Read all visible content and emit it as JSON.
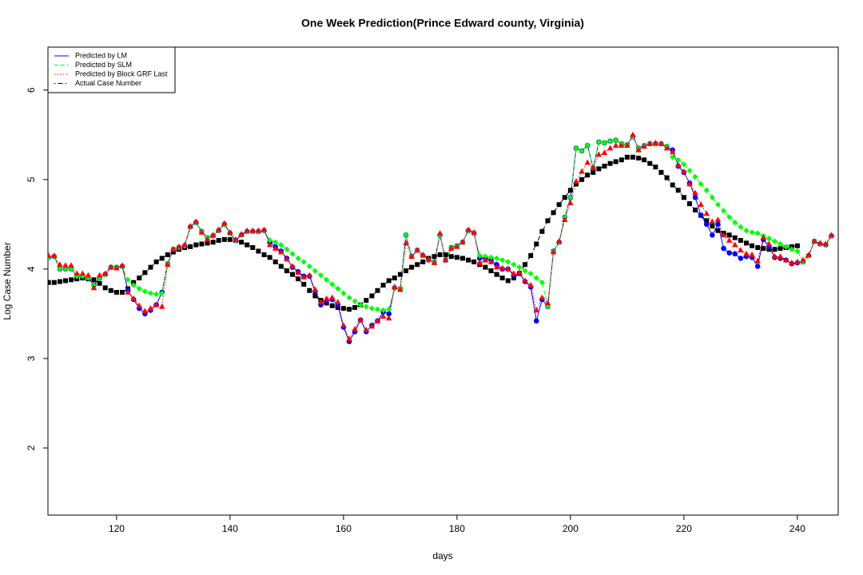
{
  "chart_data": {
    "type": "line_points",
    "title": "One Week Prediction(Prince Edward county, Virginia)",
    "xlabel": "days",
    "ylabel": "Log Case Number",
    "xlim": [
      107.9,
      247.2
    ],
    "ylim": [
      1.25,
      6.48
    ],
    "xticks": [
      120,
      140,
      160,
      180,
      200,
      220,
      240
    ],
    "yticks": [
      2,
      3,
      4,
      5,
      6
    ],
    "grid": false,
    "legend": "topleft",
    "x": [
      108,
      109,
      110,
      111,
      112,
      113,
      114,
      115,
      116,
      117,
      118,
      119,
      120,
      121,
      122,
      123,
      124,
      125,
      126,
      127,
      128,
      129,
      130,
      131,
      132,
      133,
      134,
      135,
      136,
      137,
      138,
      139,
      140,
      141,
      142,
      143,
      144,
      145,
      146,
      147,
      148,
      149,
      150,
      151,
      152,
      153,
      154,
      155,
      156,
      157,
      158,
      159,
      160,
      161,
      162,
      163,
      164,
      165,
      166,
      167,
      168,
      169,
      170,
      171,
      172,
      173,
      174,
      175,
      176,
      177,
      178,
      179,
      180,
      181,
      182,
      183,
      184,
      185,
      186,
      187,
      188,
      189,
      190,
      191,
      192,
      193,
      194,
      195,
      196,
      197,
      198,
      199,
      200,
      201,
      202,
      203,
      204,
      205,
      206,
      207,
      208,
      209,
      210,
      211,
      212,
      213,
      214,
      215,
      216,
      217,
      218,
      219,
      220,
      221,
      222,
      223,
      224,
      225,
      226,
      227,
      228,
      229,
      230,
      231,
      232,
      233,
      234,
      235,
      236,
      237,
      238,
      239,
      240,
      241,
      242,
      243,
      244,
      245,
      246
    ],
    "series": [
      {
        "name": "Predicted by LM",
        "color": "#0000ff",
        "dash": "solid",
        "marker": "circle",
        "values": [
          4.13,
          4.14,
          4.0,
          4.0,
          4.0,
          3.92,
          3.92,
          3.9,
          3.82,
          3.9,
          3.94,
          4.02,
          4.02,
          4.03,
          3.76,
          3.66,
          3.56,
          3.5,
          3.54,
          3.6,
          3.74,
          4.06,
          4.22,
          4.24,
          4.26,
          4.47,
          4.52,
          4.42,
          4.35,
          4.37,
          4.43,
          4.5,
          4.4,
          4.32,
          4.38,
          4.42,
          4.42,
          4.42,
          4.43,
          4.3,
          4.25,
          4.2,
          4.12,
          4.02,
          3.97,
          3.92,
          3.92,
          3.75,
          3.6,
          3.64,
          3.66,
          3.6,
          3.35,
          3.19,
          3.3,
          3.43,
          3.3,
          3.37,
          3.42,
          3.52,
          3.5,
          3.79,
          3.78,
          4.38,
          4.14,
          4.21,
          4.15,
          4.1,
          4.08,
          4.38,
          4.1,
          4.24,
          4.26,
          4.3,
          4.43,
          4.4,
          4.12,
          4.12,
          4.1,
          4.05,
          4.0,
          4.0,
          3.93,
          3.95,
          3.86,
          3.8,
          3.42,
          3.66,
          3.58,
          4.2,
          4.3,
          4.58,
          4.8,
          5.35,
          5.32,
          5.38,
          5.13,
          5.42,
          5.41,
          5.43,
          5.44,
          5.4,
          5.39,
          5.48,
          5.35,
          5.38,
          5.4,
          5.4,
          5.4,
          5.37,
          5.33,
          5.15,
          5.08,
          4.96,
          4.8,
          4.6,
          4.5,
          4.38,
          4.5,
          4.23,
          4.18,
          4.17,
          4.12,
          4.14,
          4.13,
          4.03,
          4.33,
          4.25,
          4.13,
          4.12,
          4.1,
          4.06,
          4.07,
          4.08,
          4.15,
          4.31,
          4.28,
          4.27,
          4.37
        ]
      },
      {
        "name": "Predicted by SLM",
        "color": "#00ff00",
        "dash": "dashed",
        "marker": "diamond",
        "values": [
          4.13,
          4.14,
          4.0,
          4.0,
          4.0,
          3.92,
          3.92,
          3.9,
          3.82,
          3.9,
          3.94,
          4.02,
          4.02,
          4.03,
          3.88,
          3.82,
          3.78,
          3.75,
          3.73,
          3.72,
          3.73,
          4.06,
          4.22,
          4.24,
          4.26,
          4.47,
          4.52,
          4.42,
          4.35,
          4.37,
          4.43,
          4.5,
          4.4,
          4.32,
          4.38,
          4.42,
          4.42,
          4.42,
          4.43,
          4.32,
          4.3,
          4.27,
          4.22,
          4.17,
          4.12,
          4.08,
          4.03,
          3.98,
          3.93,
          3.88,
          3.83,
          3.78,
          3.73,
          3.68,
          3.64,
          3.6,
          3.58,
          3.56,
          3.55,
          3.54,
          3.55,
          3.79,
          3.78,
          4.38,
          4.14,
          4.21,
          4.15,
          4.1,
          4.08,
          4.38,
          4.1,
          4.24,
          4.26,
          4.3,
          4.43,
          4.4,
          4.15,
          4.14,
          4.13,
          4.12,
          4.1,
          4.08,
          4.05,
          4.02,
          3.98,
          3.95,
          3.9,
          3.85,
          3.58,
          4.2,
          4.3,
          4.58,
          4.8,
          5.35,
          5.32,
          5.38,
          5.13,
          5.42,
          5.41,
          5.43,
          5.44,
          5.4,
          5.39,
          5.48,
          5.35,
          5.38,
          5.4,
          5.4,
          5.4,
          5.37,
          5.25,
          5.22,
          5.17,
          5.1,
          5.03,
          4.95,
          4.88,
          4.8,
          4.72,
          4.65,
          4.58,
          4.52,
          4.47,
          4.43,
          4.41,
          4.4,
          4.37,
          4.34,
          4.31,
          4.28,
          4.25,
          4.22,
          4.2,
          4.08,
          4.15,
          4.31,
          4.28,
          4.27,
          4.37
        ]
      },
      {
        "name": "Predicted by Block GRF Last",
        "color": "#ff0000",
        "dash": "dotted",
        "marker": "triangle",
        "values": [
          4.15,
          4.15,
          4.05,
          4.04,
          4.04,
          3.95,
          3.95,
          3.93,
          3.79,
          3.93,
          3.95,
          4.02,
          4.01,
          4.04,
          3.74,
          3.67,
          3.59,
          3.53,
          3.56,
          3.6,
          3.58,
          4.05,
          4.22,
          4.25,
          4.27,
          4.48,
          4.53,
          4.41,
          4.33,
          4.38,
          4.44,
          4.51,
          4.41,
          4.33,
          4.39,
          4.43,
          4.43,
          4.43,
          4.44,
          4.27,
          4.23,
          4.19,
          4.11,
          4.03,
          3.96,
          3.91,
          3.93,
          3.77,
          3.63,
          3.67,
          3.68,
          3.63,
          3.37,
          3.22,
          3.33,
          3.43,
          3.32,
          3.36,
          3.42,
          3.47,
          3.45,
          3.8,
          3.77,
          4.29,
          4.14,
          4.21,
          4.16,
          4.11,
          4.07,
          4.4,
          4.1,
          4.23,
          4.25,
          4.3,
          4.44,
          4.41,
          4.07,
          4.1,
          4.08,
          4.02,
          4.01,
          4.0,
          3.95,
          3.96,
          3.87,
          3.82,
          3.54,
          3.68,
          3.62,
          4.19,
          4.31,
          4.55,
          4.74,
          4.98,
          5.09,
          5.19,
          5.13,
          5.28,
          5.3,
          5.35,
          5.38,
          5.38,
          5.38,
          5.5,
          5.33,
          5.37,
          5.4,
          5.41,
          5.4,
          5.35,
          5.31,
          5.16,
          5.09,
          4.95,
          4.85,
          4.72,
          4.62,
          4.53,
          4.55,
          4.38,
          4.32,
          4.27,
          4.21,
          4.17,
          4.16,
          4.09,
          4.35,
          4.28,
          4.14,
          4.14,
          4.1,
          4.07,
          4.08,
          4.1,
          4.16,
          4.31,
          4.29,
          4.28,
          4.38
        ]
      },
      {
        "name": "Actual Case Number",
        "color": "#000000",
        "dash": "dotdash",
        "marker": "square",
        "values": [
          3.85,
          3.85,
          3.86,
          3.87,
          3.88,
          3.89,
          3.9,
          3.89,
          3.88,
          3.84,
          3.79,
          3.76,
          3.74,
          3.74,
          3.78,
          3.85,
          3.9,
          3.96,
          4.02,
          4.08,
          4.12,
          4.16,
          4.19,
          4.22,
          4.24,
          4.25,
          4.27,
          4.28,
          4.29,
          4.3,
          4.32,
          4.33,
          4.33,
          4.32,
          4.3,
          4.27,
          4.24,
          4.2,
          4.16,
          4.13,
          4.08,
          4.03,
          3.98,
          3.94,
          3.89,
          3.83,
          3.76,
          3.7,
          3.65,
          3.62,
          3.59,
          3.57,
          3.56,
          3.55,
          3.57,
          3.6,
          3.65,
          3.7,
          3.76,
          3.82,
          3.87,
          3.9,
          3.94,
          3.98,
          4.02,
          4.05,
          4.08,
          4.12,
          4.14,
          4.16,
          4.16,
          4.14,
          4.13,
          4.12,
          4.1,
          4.08,
          4.05,
          4.02,
          3.98,
          3.94,
          3.9,
          3.87,
          3.9,
          3.95,
          4.05,
          4.15,
          4.28,
          4.42,
          4.54,
          4.63,
          4.72,
          4.8,
          4.88,
          4.95,
          5.0,
          5.05,
          5.08,
          5.12,
          5.15,
          5.18,
          5.2,
          5.22,
          5.25,
          5.25,
          5.24,
          5.22,
          5.18,
          5.14,
          5.08,
          5.02,
          4.94,
          4.88,
          4.8,
          4.73,
          4.66,
          4.6,
          4.54,
          4.48,
          4.43,
          4.4,
          4.38,
          4.35,
          4.32,
          4.29,
          4.26,
          4.24,
          4.23,
          4.22,
          4.22,
          4.23,
          4.24,
          4.25,
          4.26,
          null,
          null,
          null,
          null,
          null,
          null
        ]
      }
    ]
  }
}
